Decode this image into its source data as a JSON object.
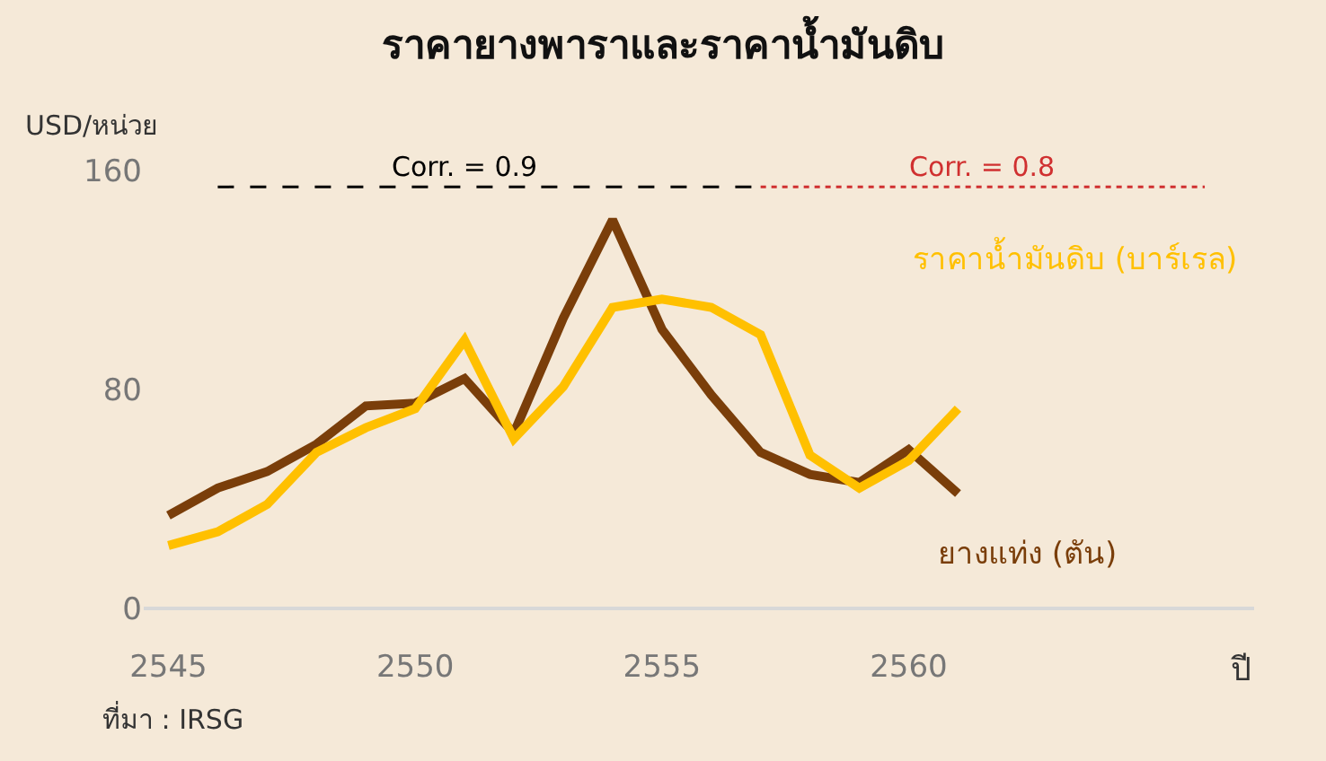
{
  "chart_data": {
    "type": "line",
    "title": "ราคายางพาราและราคาน้ำมันดิบ",
    "ylabel": "USD/หน่วย",
    "xlabel": "ปี",
    "x": [
      2545,
      2546,
      2547,
      2548,
      2549,
      2550,
      2551,
      2552,
      2553,
      2554,
      2555,
      2556,
      2557,
      2558,
      2559,
      2560,
      2561
    ],
    "series": [
      {
        "name": "ยางแท่ง (ตัน)",
        "color": "#7a3e0a",
        "values": [
          34,
          44,
          50,
          60,
          74,
          75,
          84,
          64,
          106,
          142,
          102,
          78,
          57,
          49,
          46,
          58,
          42
        ]
      },
      {
        "name": "ราคาน้ำมันดิบ (บาร์เรล)",
        "color": "#ffc000",
        "values": [
          23,
          28,
          38,
          57,
          66,
          73,
          98,
          62,
          81,
          110,
          113,
          110,
          100,
          56,
          44,
          54,
          73
        ]
      },
      {
        "type": "line",
        "x": [
          2546,
          2557
        ],
        "values": [
          154,
          154
        ],
        "color": "#000000",
        "line_style": "dashed"
      },
      {
        "type": "line",
        "x": [
          2557,
          2566
        ],
        "values": [
          154,
          154
        ],
        "color": "#d03030",
        "line_style": "dotted"
      }
    ],
    "annotations": [
      {
        "text": "Corr. = 0.9",
        "x": 2551,
        "y": 154
      },
      {
        "text": "Corr. = 0.8",
        "x": 2561.5,
        "y": 154
      },
      "ที่มา : IRSG"
    ],
    "xlim": [
      2544.5,
      2567
    ],
    "ylim": [
      0,
      160
    ],
    "xticks": [
      2545,
      2550,
      2555,
      2560
    ],
    "yticks": [
      0,
      80,
      160
    ],
    "grid": false,
    "legend": false
  }
}
